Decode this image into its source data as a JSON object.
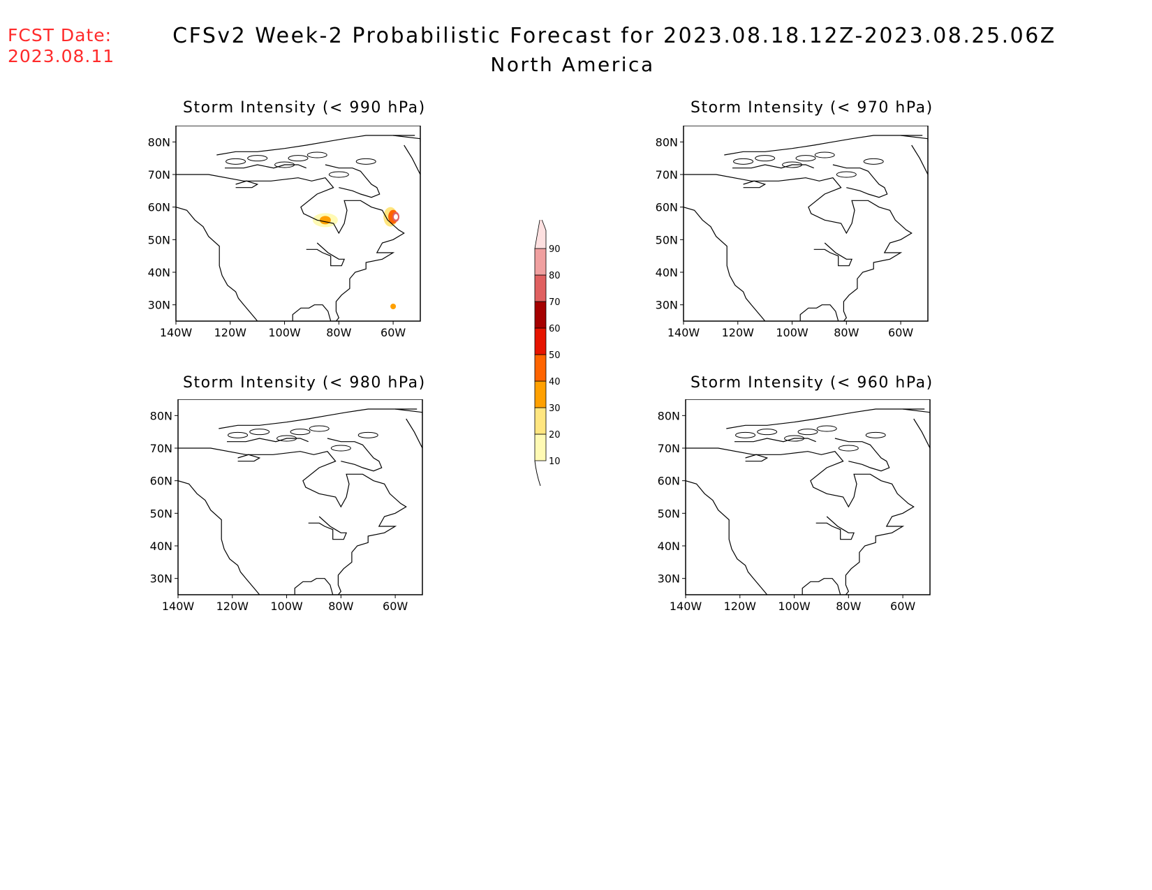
{
  "fcst": {
    "label": "FCST Date:",
    "date": "2023.08.11"
  },
  "title": "CFSv2 Week-2 Probabilistic Forecast for 2023.08.18.12Z-2023.08.25.06Z",
  "subtitle": "North America",
  "axes": {
    "lat_ticks": [
      "80N",
      "70N",
      "60N",
      "50N",
      "40N",
      "30N"
    ],
    "lon_ticks": [
      "140W",
      "120W",
      "100W",
      "80W",
      "60W"
    ]
  },
  "panels": [
    {
      "title": "Storm Intensity (< 990 hPa)",
      "has_prob_shading": true
    },
    {
      "title": "Storm Intensity (< 970 hPa)",
      "has_prob_shading": false
    },
    {
      "title": "Storm Intensity (< 980 hPa)",
      "has_prob_shading": false
    },
    {
      "title": "Storm Intensity (< 960 hPa)",
      "has_prob_shading": false
    }
  ],
  "colorbar": {
    "levels": [
      "10",
      "20",
      "30",
      "40",
      "50",
      "60",
      "70",
      "80",
      "90"
    ],
    "colors": [
      "#fffab4",
      "#ffe680",
      "#ffa000",
      "#ff6400",
      "#e61400",
      "#a50000",
      "#e06060",
      "#f0a0a0",
      "#fde0e0"
    ]
  }
}
